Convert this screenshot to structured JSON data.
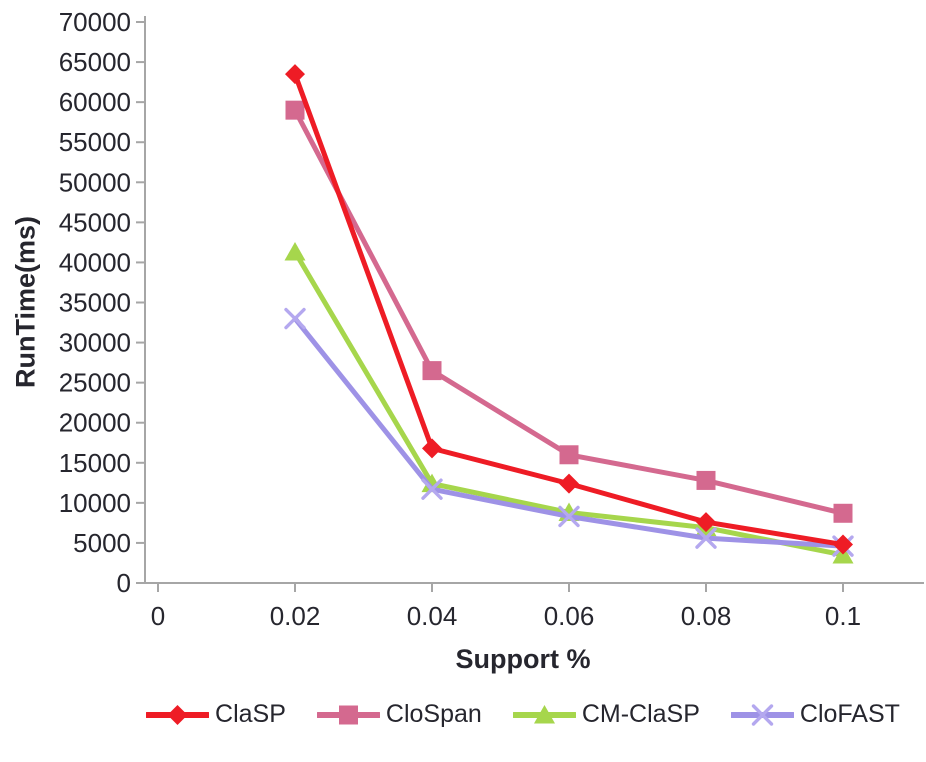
{
  "figure": {
    "background": "#ffffff",
    "axis_color": "#a6a6a6",
    "text_color": "#26262e"
  },
  "chart_data": {
    "type": "line",
    "title": "",
    "xlabel": "Support %",
    "ylabel": "RunTime(ms)",
    "grid": false,
    "legend_position": "bottom",
    "ylim": [
      0,
      70000
    ],
    "y_ticks": [
      0,
      5000,
      10000,
      15000,
      20000,
      25000,
      30000,
      35000,
      40000,
      45000,
      50000,
      55000,
      60000,
      65000,
      70000
    ],
    "x_tick_labels": [
      "0",
      "0.02",
      "0.04",
      "0.06",
      "0.08",
      "0.1"
    ],
    "x_tick_values": [
      0,
      0.02,
      0.04,
      0.06,
      0.08,
      0.1
    ],
    "x": [
      0.02,
      0.04,
      0.06,
      0.08,
      0.1
    ],
    "series": [
      {
        "name": "ClaSP",
        "color": "#ee1c25",
        "marker": "diamond",
        "values": [
          63500,
          16800,
          12400,
          7600,
          4800
        ]
      },
      {
        "name": "CloSpan",
        "color": "#d4698f",
        "marker": "square",
        "values": [
          59000,
          26500,
          16000,
          12800,
          8700
        ]
      },
      {
        "name": "CM-ClaSP",
        "color": "#a6d64c",
        "marker": "triangle",
        "values": [
          41300,
          12400,
          8800,
          6900,
          3500
        ]
      },
      {
        "name": "CloFAST",
        "color": "#9e92e6",
        "marker": "x",
        "marker_color": "#b4a8ef",
        "values": [
          33000,
          11700,
          8300,
          5600,
          4600
        ]
      }
    ]
  }
}
